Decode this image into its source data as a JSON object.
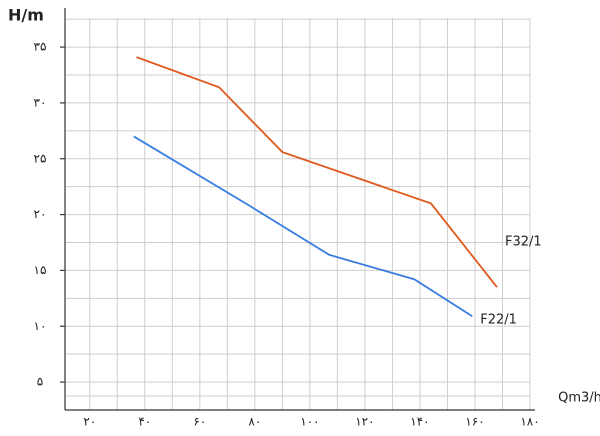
{
  "chart_data": {
    "type": "line",
    "y_label": "H/m",
    "x_label": "Qm3/h",
    "xlim": [
      11,
      180
    ],
    "ylim": [
      2.5,
      38.5
    ],
    "xticks": [
      {
        "value": 20,
        "label": "۲۰"
      },
      {
        "value": 40,
        "label": "۴۰"
      },
      {
        "value": 60,
        "label": "۶۰"
      },
      {
        "value": 80,
        "label": "۸۰"
      },
      {
        "value": 100,
        "label": "۱۰۰"
      },
      {
        "value": 120,
        "label": "۱۲۰"
      },
      {
        "value": 140,
        "label": "۱۴۰"
      },
      {
        "value": 160,
        "label": "۱۶۰"
      },
      {
        "value": 180,
        "label": "۱۸۰"
      }
    ],
    "yticks": [
      {
        "value": 5,
        "label": "۵"
      },
      {
        "value": 10,
        "label": "۱۰"
      },
      {
        "value": 15,
        "label": "۱۵"
      },
      {
        "value": 20,
        "label": "۲۰"
      },
      {
        "value": 25,
        "label": "۲۵"
      },
      {
        "value": 30,
        "label": "۳۰"
      },
      {
        "value": 35,
        "label": "۳۵"
      }
    ],
    "grid": true,
    "series": [
      {
        "name": "F32/1",
        "color": "#e05a1e",
        "x": [
          37,
          67,
          90,
          144,
          168
        ],
        "values": [
          34.1,
          31.4,
          25.6,
          21,
          13.5
        ]
      },
      {
        "name": "F22/1",
        "color": "#3a7de0",
        "x": [
          36,
          78,
          107,
          138,
          159
        ],
        "values": [
          27,
          20.8,
          16.4,
          14.2,
          10.9
        ]
      }
    ]
  }
}
